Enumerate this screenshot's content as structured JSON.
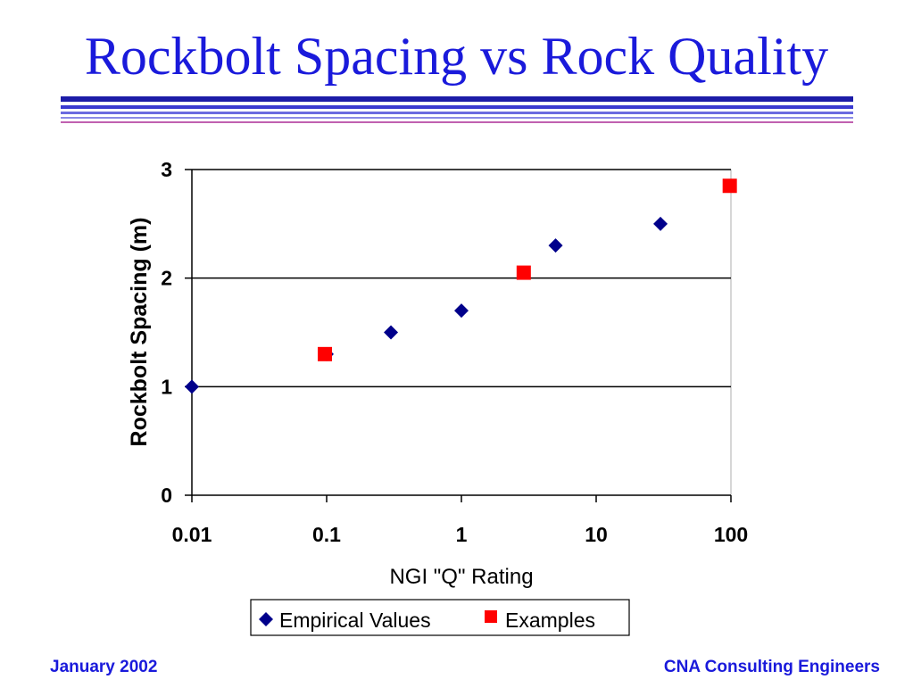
{
  "slide": {
    "title": "Rockbolt Spacing vs Rock Quality",
    "footer_left": "January 2002",
    "footer_right": "CNA Consulting Engineers"
  },
  "colors": {
    "title": "#1a1adb",
    "rule_dark": "#1c1ca8",
    "rule_light": "#8a8ae6",
    "rule_pink": "#c060b0",
    "empirical": "#00008b",
    "examples": "#ff0000",
    "footer": "#1a1adb"
  },
  "chart_data": {
    "type": "scatter",
    "title": "",
    "xlabel": "NGI \"Q\" Rating",
    "ylabel": "Rockbolt Spacing (m)",
    "x_scale": "log",
    "xlim": [
      0.01,
      100
    ],
    "ylim": [
      0,
      3
    ],
    "x_ticks": [
      "0.01",
      "0.1",
      "1",
      "10",
      "100"
    ],
    "y_ticks": [
      "0",
      "1",
      "2",
      "3"
    ],
    "grid": "horizontal",
    "legend_position": "bottom",
    "series": [
      {
        "name": "Empirical Values",
        "marker": "diamond",
        "color": "#00008b",
        "x": [
          0.01,
          0.1,
          0.3,
          1,
          5,
          30
        ],
        "y": [
          1.0,
          1.3,
          1.5,
          1.7,
          2.3,
          2.5
        ]
      },
      {
        "name": "Examples",
        "marker": "square",
        "color": "#ff0000",
        "x": [
          0.097,
          2.9,
          98
        ],
        "y": [
          1.3,
          2.05,
          2.85
        ]
      }
    ]
  }
}
